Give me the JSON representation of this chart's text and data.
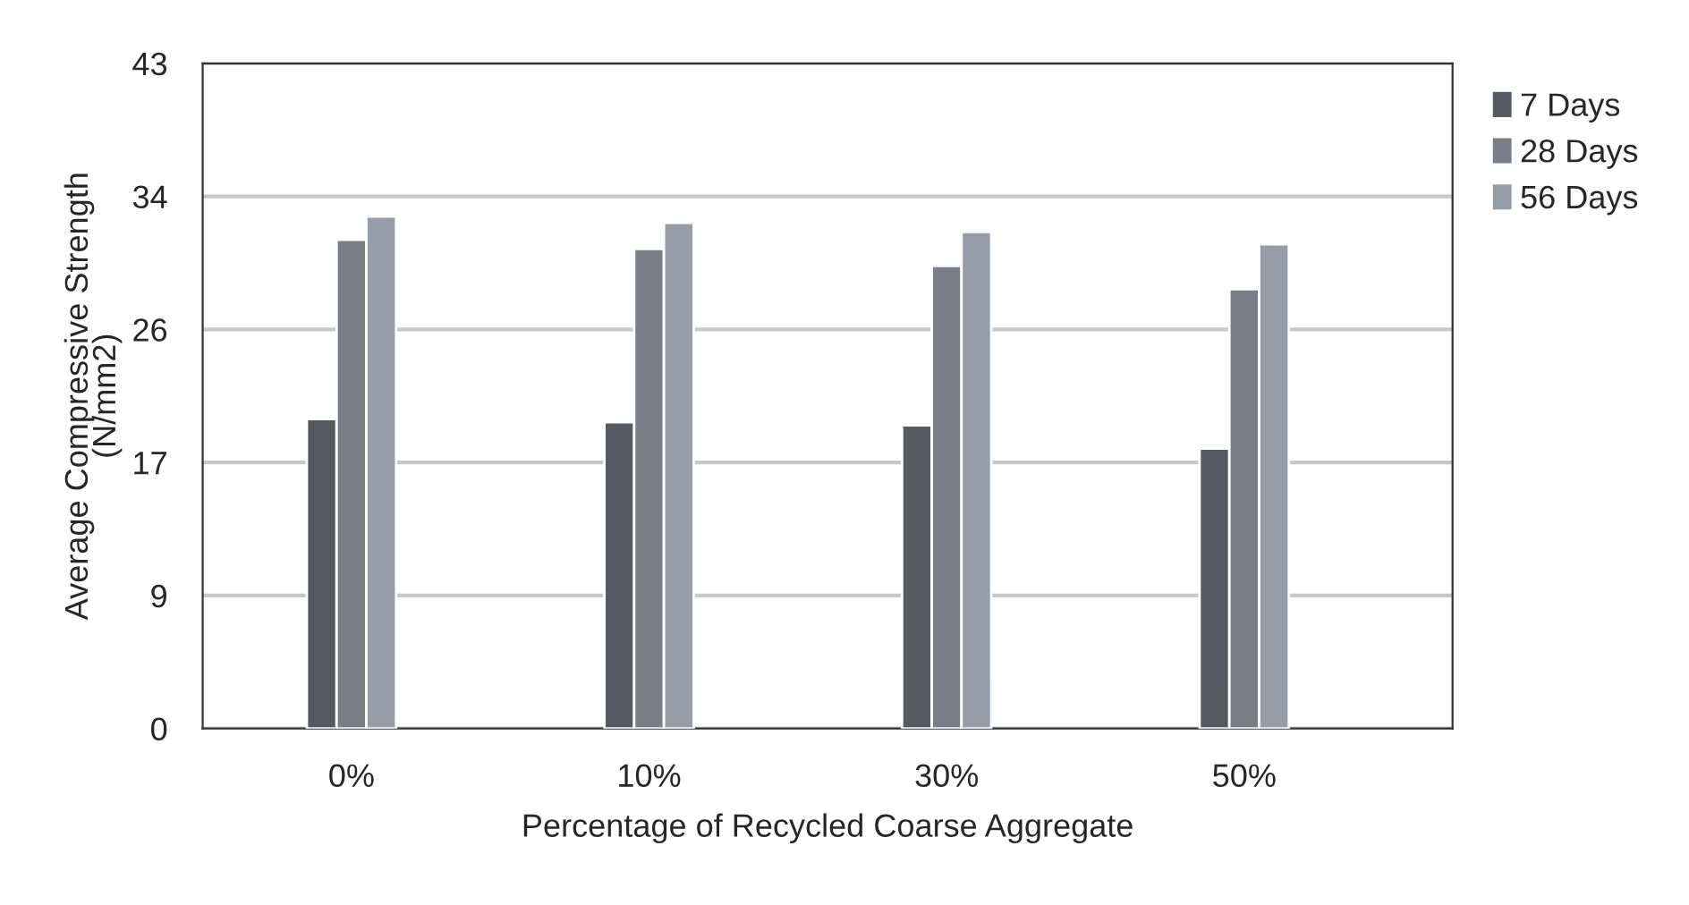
{
  "chart_data": {
    "type": "bar",
    "xlabel": "Percentage of Recycled Coarse Aggregate",
    "ylabel": "Average Compressive Strength\n(N/mm2)",
    "categories": [
      "0%",
      "10%",
      "30%",
      "50%"
    ],
    "series": [
      {
        "name": "7 Days",
        "color": "#555a62",
        "values": [
          20.0,
          19.8,
          19.6,
          18.1
        ]
      },
      {
        "name": "28 Days",
        "color": "#787e88",
        "values": [
          31.6,
          31.0,
          29.9,
          28.4
        ]
      },
      {
        "name": "56 Days",
        "color": "#959ea8",
        "values": [
          33.1,
          32.7,
          32.1,
          31.3
        ]
      }
    ],
    "ylim": [
      0,
      43
    ],
    "yticks": [
      0,
      {
        "value": 8.6,
        "label": "9"
      },
      {
        "value": 17.2,
        "label": "17"
      },
      {
        "value": 25.8,
        "label": "26"
      },
      {
        "value": 34.4,
        "label": "34"
      },
      43
    ],
    "grid": "y",
    "legend": "right"
  }
}
